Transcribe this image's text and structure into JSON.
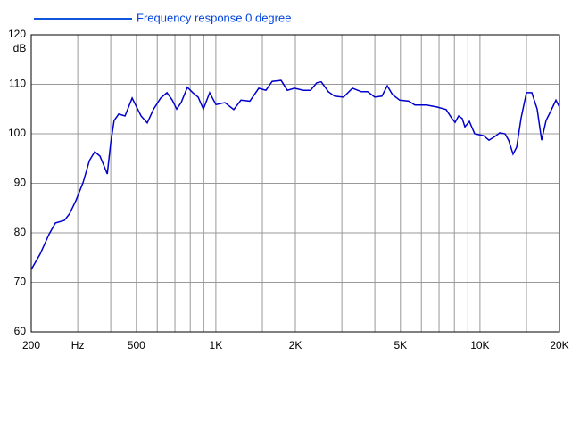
{
  "chart_data": {
    "type": "line",
    "legend_label": "Frequency response 0 degree",
    "y_label": "dB",
    "xscale": "log",
    "xlim": [
      200,
      20000
    ],
    "ylim": [
      60,
      120
    ],
    "xticks": [
      200,
      {
        "value": 300,
        "label": "Hz"
      },
      500,
      {
        "value": 1000,
        "label": "1K"
      },
      {
        "value": 2000,
        "label": "2K"
      },
      {
        "value": 5000,
        "label": "5K"
      },
      {
        "value": 10000,
        "label": "10K"
      },
      {
        "value": 20000,
        "label": "20K"
      }
    ],
    "x_minor_grid": [
      400,
      600,
      700,
      800,
      900,
      1500,
      3000,
      4000,
      6000,
      7000,
      8000,
      9000,
      15000
    ],
    "yticks": [
      60,
      70,
      80,
      90,
      100,
      110,
      120
    ],
    "grid": true,
    "legend_position": "top-left",
    "series": [
      {
        "name": "Frequency response 0 degree",
        "color": "#0000cc",
        "x": [
          200,
          216,
          234,
          247,
          267,
          279,
          295,
          314,
          332,
          348,
          364,
          376,
          388,
          400,
          412,
          429,
          453,
          482,
          497,
          521,
          550,
          581,
          618,
          653,
          684,
          711,
          739,
          780,
          818,
          857,
          897,
          948,
          1001,
          1082,
          1169,
          1244,
          1345,
          1454,
          1547,
          1634,
          1766,
          1865,
          1984,
          2145,
          2282,
          2410,
          2506,
          2667,
          2816,
          3044,
          3290,
          3557,
          3755,
          3996,
          4254,
          4457,
          4669,
          4969,
          5371,
          5672,
          6275,
          6890,
          7448,
          7804,
          8050,
          8304,
          8566,
          8770,
          9118,
          9554,
          10326,
          10818,
          11426,
          11876,
          12444,
          12836,
          13346,
          13768,
          14312,
          14998,
          15714,
          16464,
          17118,
          17798,
          18504,
          19388,
          20000
        ],
        "values": [
          72.6,
          75.7,
          79.8,
          82,
          82.5,
          83.8,
          86.5,
          90.1,
          94.6,
          96.4,
          95.5,
          93.7,
          91.9,
          98.2,
          102.7,
          104,
          103.6,
          107.2,
          105.8,
          103.6,
          102.2,
          105,
          107.2,
          108.3,
          106.8,
          105,
          106.3,
          109.4,
          108.3,
          107.4,
          105,
          108.3,
          105.9,
          106.3,
          104.9,
          106.8,
          106.6,
          109.2,
          108.8,
          110.6,
          110.8,
          108.8,
          109.2,
          108.8,
          108.8,
          110.3,
          110.5,
          108.5,
          107.6,
          107.4,
          109.2,
          108.5,
          108.5,
          107.4,
          107.6,
          109.7,
          107.9,
          106.8,
          106.6,
          105.8,
          105.8,
          105.4,
          104.9,
          103.2,
          102.3,
          103.6,
          103.1,
          101.4,
          102.5,
          100,
          99.6,
          98.7,
          99.5,
          100.2,
          100,
          98.7,
          95.9,
          97.3,
          103.2,
          108.3,
          108.3,
          105,
          98.7,
          102.7,
          104.5,
          106.8,
          105.4
        ]
      }
    ]
  }
}
